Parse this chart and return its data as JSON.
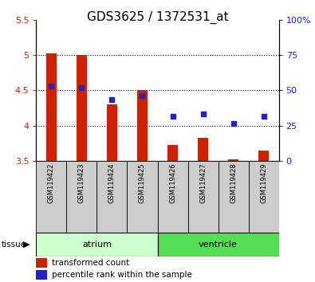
{
  "title": "GDS3625 / 1372531_at",
  "samples": [
    "GSM119422",
    "GSM119423",
    "GSM119424",
    "GSM119425",
    "GSM119426",
    "GSM119427",
    "GSM119428",
    "GSM119429"
  ],
  "bar_tops": [
    5.02,
    5.0,
    4.3,
    4.5,
    3.72,
    3.83,
    3.52,
    3.65
  ],
  "bar_bottom": 3.5,
  "percentile_values": [
    4.56,
    4.54,
    4.37,
    4.42,
    4.13,
    4.16,
    4.03,
    4.13
  ],
  "ylim": [
    3.5,
    5.5
  ],
  "yticks_left": [
    3.5,
    4.0,
    4.5,
    5.0,
    5.5
  ],
  "bar_color": "#cc2200",
  "dot_color": "#2222cc",
  "tissue_groups": [
    {
      "label": "atrium",
      "start": 0,
      "end": 3,
      "color": "#ccffcc"
    },
    {
      "label": "ventricle",
      "start": 4,
      "end": 7,
      "color": "#55dd55"
    }
  ],
  "tissue_label": "tissue",
  "legend_bar_label": "transformed count",
  "legend_dot_label": "percentile rank within the sample",
  "left_tick_color": "#cc2200",
  "right_tick_color": "#2222cc",
  "title_fontsize": 11,
  "tick_fontsize": 8,
  "sample_fontsize": 6,
  "legend_fontsize": 7.5,
  "tissue_fontsize": 8
}
